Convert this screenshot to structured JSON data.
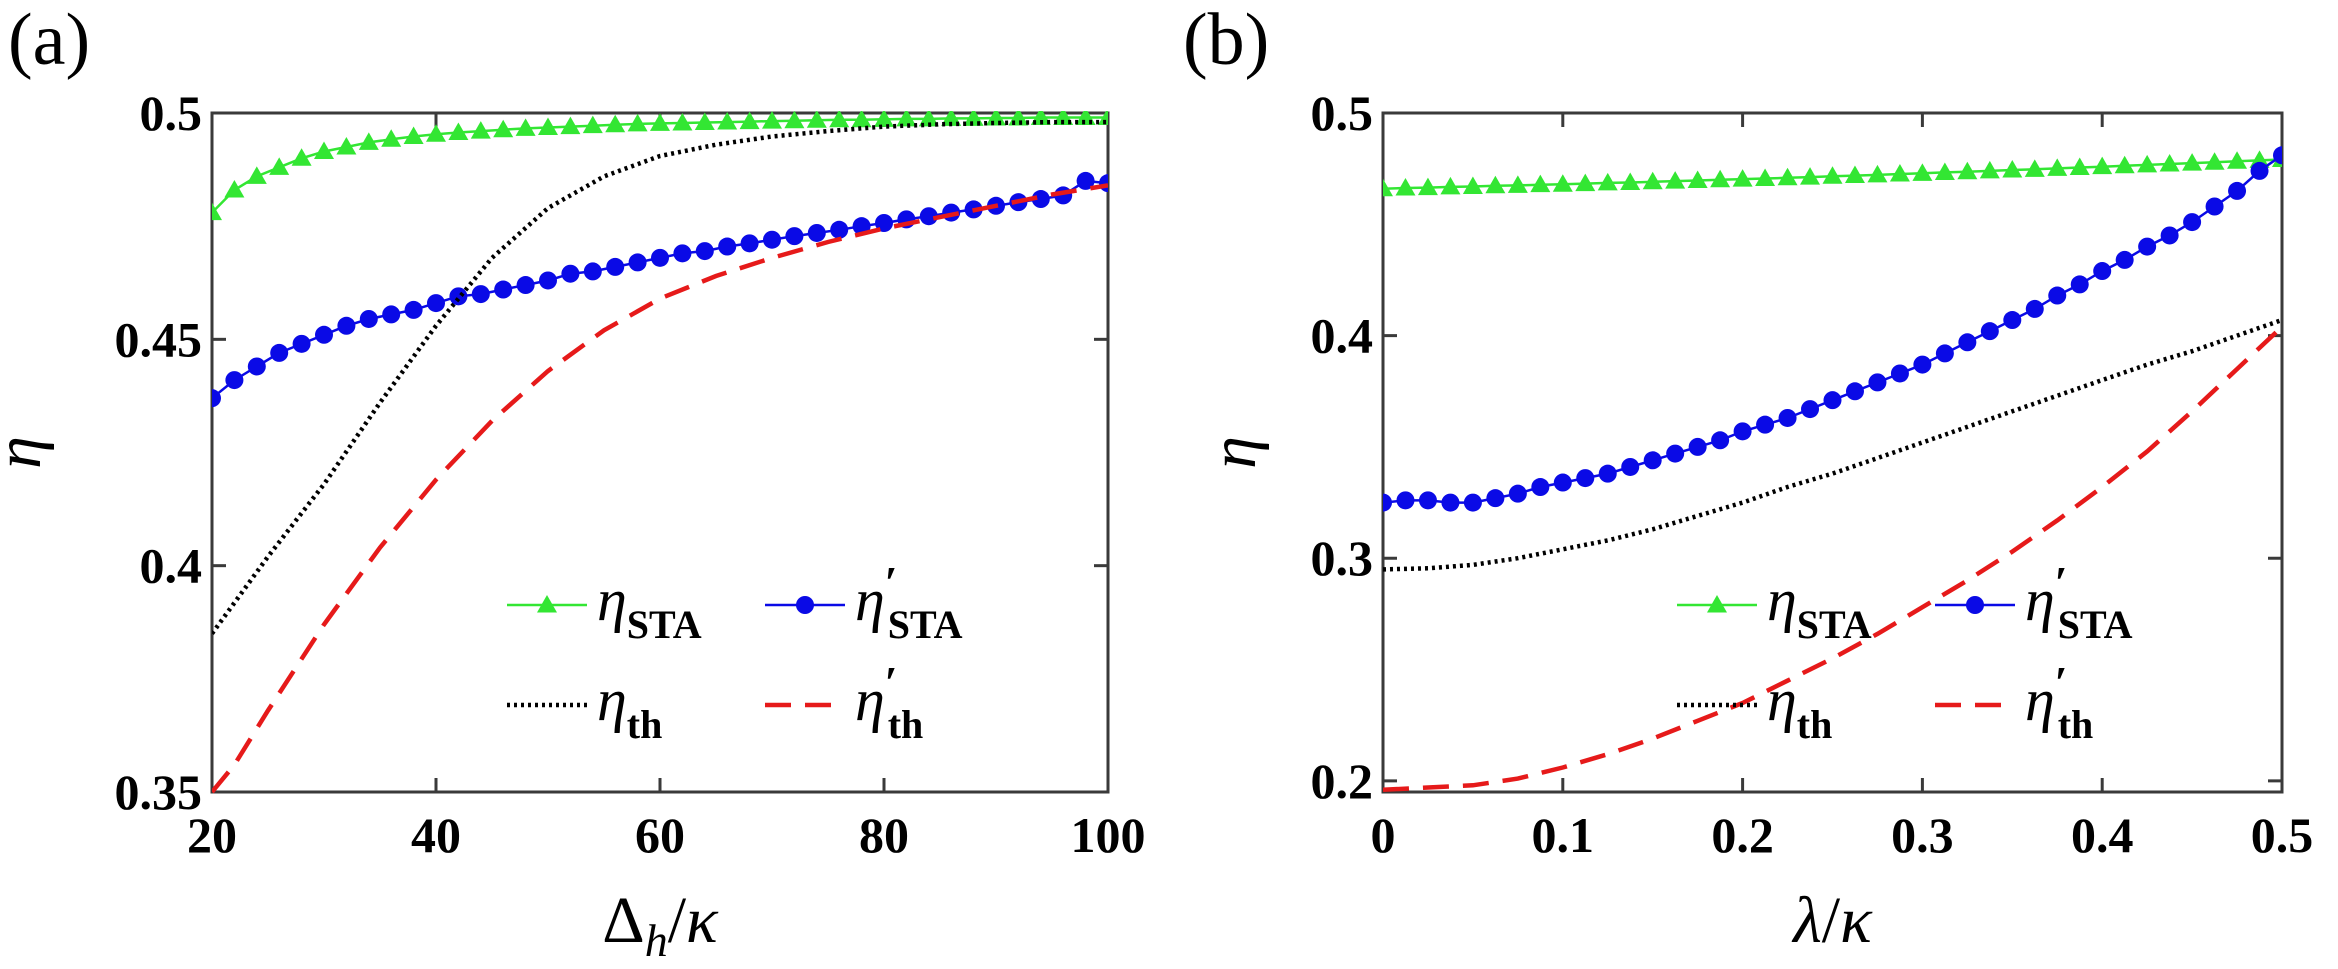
{
  "chart_data": [
    {
      "type": "line",
      "panel_label": "(a)",
      "xlabel": "Δ_h/κ",
      "ylabel": "η",
      "xlim": [
        20,
        100
      ],
      "ylim": [
        0.35,
        0.5
      ],
      "xticks": [
        20,
        40,
        60,
        80,
        100
      ],
      "xtick_labels": [
        "20",
        "40",
        "60",
        "80",
        "100"
      ],
      "yticks": [
        0.35,
        0.4,
        0.45,
        0.5
      ],
      "ytick_labels": [
        "0.35",
        "0.4",
        "0.45",
        "0.5"
      ],
      "grid": false,
      "legend_position": "bottom-right",
      "series": [
        {
          "name": "η_STA",
          "legend_base": "η",
          "legend_prime": "",
          "legend_sub": "STA",
          "color": "#33e633",
          "linestyle": "solid",
          "marker": "triangle",
          "x": [
            20,
            22,
            24,
            26,
            28,
            30,
            32,
            34,
            36,
            38,
            40,
            42,
            44,
            46,
            48,
            50,
            52,
            54,
            56,
            58,
            60,
            62,
            64,
            66,
            68,
            70,
            72,
            74,
            76,
            78,
            80,
            82,
            84,
            86,
            88,
            90,
            92,
            94,
            96,
            98,
            100
          ],
          "y": [
            0.478,
            0.483,
            0.486,
            0.488,
            0.49,
            0.4915,
            0.4925,
            0.4935,
            0.4942,
            0.4948,
            0.4953,
            0.4957,
            0.496,
            0.4963,
            0.4966,
            0.4968,
            0.497,
            0.4972,
            0.4974,
            0.4976,
            0.4977,
            0.4978,
            0.4979,
            0.498,
            0.4981,
            0.4982,
            0.4983,
            0.4984,
            0.4985,
            0.4985,
            0.4986,
            0.4987,
            0.4987,
            0.4988,
            0.4988,
            0.4989,
            0.4989,
            0.499,
            0.499,
            0.499,
            0.499
          ]
        },
        {
          "name": "η′_STA",
          "legend_base": "η",
          "legend_prime": "′",
          "legend_sub": "STA",
          "color": "#0a0ae6",
          "linestyle": "solid",
          "marker": "circle",
          "x": [
            20,
            22,
            24,
            26,
            28,
            30,
            32,
            34,
            36,
            38,
            40,
            42,
            44,
            46,
            48,
            50,
            52,
            54,
            56,
            58,
            60,
            62,
            64,
            66,
            68,
            70,
            72,
            74,
            76,
            78,
            80,
            82,
            84,
            86,
            88,
            90,
            92,
            94,
            96,
            98,
            100
          ],
          "y": [
            0.437,
            0.441,
            0.444,
            0.447,
            0.449,
            0.451,
            0.453,
            0.4545,
            0.4555,
            0.4565,
            0.458,
            0.4595,
            0.46,
            0.461,
            0.462,
            0.463,
            0.4645,
            0.465,
            0.466,
            0.467,
            0.468,
            0.469,
            0.4695,
            0.4705,
            0.4712,
            0.472,
            0.4728,
            0.4735,
            0.4742,
            0.475,
            0.4757,
            0.4765,
            0.4772,
            0.478,
            0.4787,
            0.4795,
            0.4803,
            0.481,
            0.4818,
            0.485,
            0.4845
          ]
        },
        {
          "name": "η_th",
          "legend_base": "η",
          "legend_prime": "",
          "legend_sub": "th",
          "color": "#000000",
          "linestyle": "dotted",
          "marker": "none",
          "x": [
            20,
            25,
            30,
            35,
            40,
            45,
            50,
            55,
            60,
            65,
            70,
            75,
            80,
            85,
            90,
            95,
            100
          ],
          "y": [
            0.385,
            0.402,
            0.418,
            0.436,
            0.453,
            0.468,
            0.479,
            0.486,
            0.4905,
            0.493,
            0.4948,
            0.496,
            0.497,
            0.4975,
            0.4978,
            0.498,
            0.498
          ]
        },
        {
          "name": "η′_th",
          "legend_base": "η",
          "legend_prime": "′",
          "legend_sub": "th",
          "color": "#e61a1a",
          "linestyle": "dashed",
          "marker": "none",
          "x": [
            20,
            22,
            25,
            30,
            35,
            40,
            45,
            50,
            55,
            60,
            65,
            70,
            75,
            80,
            85,
            90,
            95,
            100
          ],
          "y": [
            0.35,
            0.356,
            0.368,
            0.387,
            0.404,
            0.419,
            0.432,
            0.443,
            0.452,
            0.459,
            0.464,
            0.468,
            0.4715,
            0.4745,
            0.477,
            0.4795,
            0.482,
            0.484
          ]
        }
      ]
    },
    {
      "type": "line",
      "panel_label": "(b)",
      "xlabel": "λ/κ",
      "ylabel": "η",
      "xlim": [
        0,
        0.5
      ],
      "ylim": [
        0.195,
        0.5
      ],
      "xticks": [
        0,
        0.1,
        0.2,
        0.3,
        0.4,
        0.5
      ],
      "xtick_labels": [
        "0",
        "0.1",
        "0.2",
        "0.3",
        "0.4",
        "0.5"
      ],
      "yticks": [
        0.2,
        0.3,
        0.4,
        0.5
      ],
      "ytick_labels": [
        "0.2",
        "0.3",
        "0.4",
        "0.5"
      ],
      "grid": false,
      "legend_position": "bottom-right",
      "series": [
        {
          "name": "η_STA",
          "legend_base": "η",
          "legend_prime": "",
          "legend_sub": "STA",
          "color": "#33e633",
          "linestyle": "solid",
          "marker": "triangle",
          "x": [
            0,
            0.0125,
            0.025,
            0.0375,
            0.05,
            0.0625,
            0.075,
            0.0875,
            0.1,
            0.1125,
            0.125,
            0.1375,
            0.15,
            0.1625,
            0.175,
            0.1875,
            0.2,
            0.2125,
            0.225,
            0.2375,
            0.25,
            0.2625,
            0.275,
            0.2875,
            0.3,
            0.3125,
            0.325,
            0.3375,
            0.35,
            0.3625,
            0.375,
            0.3875,
            0.4,
            0.4125,
            0.425,
            0.4375,
            0.45,
            0.4625,
            0.475,
            0.4875,
            0.5
          ],
          "y": [
            0.466,
            0.4663,
            0.4665,
            0.4668,
            0.467,
            0.4673,
            0.4675,
            0.4678,
            0.468,
            0.4683,
            0.4686,
            0.4688,
            0.4691,
            0.4694,
            0.4697,
            0.47,
            0.4703,
            0.4706,
            0.4709,
            0.4712,
            0.4716,
            0.4719,
            0.4722,
            0.4726,
            0.4729,
            0.4733,
            0.4736,
            0.474,
            0.4744,
            0.4747,
            0.4751,
            0.4755,
            0.4759,
            0.4763,
            0.4767,
            0.4771,
            0.4775,
            0.4779,
            0.4783,
            0.4787,
            0.4791
          ]
        },
        {
          "name": "η′_STA",
          "legend_base": "η",
          "legend_prime": "′",
          "legend_sub": "STA",
          "color": "#0a0ae6",
          "linestyle": "solid",
          "marker": "circle",
          "x": [
            0,
            0.0125,
            0.025,
            0.0375,
            0.05,
            0.0625,
            0.075,
            0.0875,
            0.1,
            0.1125,
            0.125,
            0.1375,
            0.15,
            0.1625,
            0.175,
            0.1875,
            0.2,
            0.2125,
            0.225,
            0.2375,
            0.25,
            0.2625,
            0.275,
            0.2875,
            0.3,
            0.3125,
            0.325,
            0.3375,
            0.35,
            0.3625,
            0.375,
            0.3875,
            0.4,
            0.4125,
            0.425,
            0.4375,
            0.45,
            0.4625,
            0.475,
            0.4875,
            0.5
          ],
          "y": [
            0.325,
            0.326,
            0.326,
            0.325,
            0.325,
            0.327,
            0.329,
            0.332,
            0.334,
            0.336,
            0.338,
            0.341,
            0.344,
            0.347,
            0.35,
            0.353,
            0.357,
            0.36,
            0.363,
            0.367,
            0.371,
            0.375,
            0.379,
            0.383,
            0.387,
            0.392,
            0.397,
            0.402,
            0.407,
            0.412,
            0.418,
            0.423,
            0.429,
            0.434,
            0.44,
            0.445,
            0.451,
            0.458,
            0.465,
            0.474,
            0.481
          ]
        },
        {
          "name": "η_th",
          "legend_base": "η",
          "legend_prime": "",
          "legend_sub": "th",
          "color": "#000000",
          "linestyle": "dotted",
          "marker": "none",
          "x": [
            0,
            0.025,
            0.05,
            0.075,
            0.1,
            0.125,
            0.15,
            0.175,
            0.2,
            0.225,
            0.25,
            0.275,
            0.3,
            0.325,
            0.35,
            0.375,
            0.4,
            0.425,
            0.45,
            0.475,
            0.5
          ],
          "y": [
            0.295,
            0.2955,
            0.297,
            0.3,
            0.304,
            0.308,
            0.313,
            0.319,
            0.325,
            0.332,
            0.338,
            0.345,
            0.352,
            0.359,
            0.366,
            0.373,
            0.38,
            0.387,
            0.393,
            0.4,
            0.407
          ]
        },
        {
          "name": "η′_th",
          "legend_base": "η",
          "legend_prime": "′",
          "legend_sub": "th",
          "color": "#e61a1a",
          "linestyle": "dashed",
          "marker": "none",
          "x": [
            0,
            0.025,
            0.05,
            0.075,
            0.1,
            0.125,
            0.15,
            0.175,
            0.2,
            0.225,
            0.25,
            0.275,
            0.3,
            0.325,
            0.35,
            0.375,
            0.4,
            0.425,
            0.45,
            0.475,
            0.5
          ],
          "y": [
            0.196,
            0.197,
            0.198,
            0.201,
            0.206,
            0.212,
            0.219,
            0.227,
            0.235,
            0.245,
            0.255,
            0.266,
            0.278,
            0.29,
            0.303,
            0.317,
            0.332,
            0.348,
            0.366,
            0.385,
            0.404
          ]
        }
      ]
    }
  ]
}
